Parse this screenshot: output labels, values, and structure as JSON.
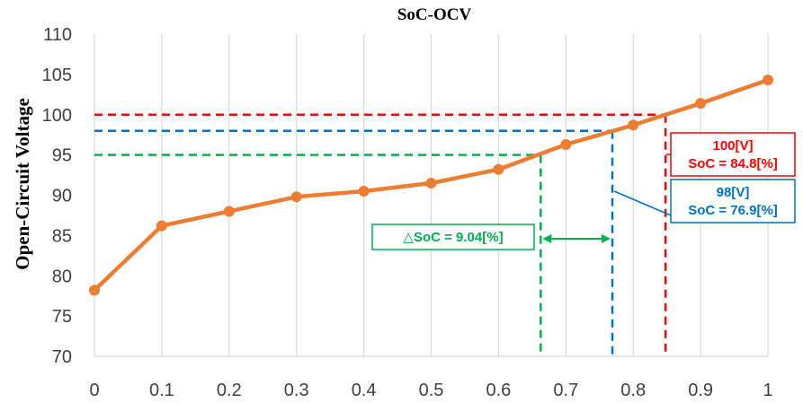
{
  "chart_data": {
    "type": "line",
    "title": "SoC-OCV",
    "xlabel": "",
    "ylabel": "Open-Circuit Voltage",
    "xlim": [
      0,
      1
    ],
    "ylim": [
      70,
      110
    ],
    "x_ticks": [
      "0",
      "0.1",
      "0.2",
      "0.3",
      "0.4",
      "0.5",
      "0.6",
      "0.7",
      "0.8",
      "0.9",
      "1"
    ],
    "y_ticks": [
      "70",
      "75",
      "80",
      "85",
      "90",
      "95",
      "100",
      "105",
      "110"
    ],
    "grid": "vertical",
    "series": [
      {
        "color": "#ed7d31",
        "x": [
          0,
          0.1,
          0.2,
          0.3,
          0.4,
          0.5,
          0.6,
          0.7,
          0.8,
          0.9,
          1.0
        ],
        "y": [
          78.2,
          86.2,
          88.0,
          89.8,
          90.5,
          91.5,
          93.2,
          96.3,
          98.7,
          101.4,
          104.3
        ]
      }
    ],
    "reference_lines": [
      {
        "voltage": 100,
        "soc": 0.848,
        "color": "#ff0000"
      },
      {
        "voltage": 98,
        "soc": 0.769,
        "color": "#0070c0"
      },
      {
        "voltage": 95,
        "soc": 0.6626,
        "color": "#00b050"
      }
    ],
    "annotations": [
      {
        "id": "red_box",
        "lines": [
          "100[V]",
          "SoC = 84.8[%]"
        ],
        "color": "#ff0000",
        "border": "#ff0000"
      },
      {
        "id": "blue_box",
        "lines": [
          "98[V]",
          "SoC = 76.9[%]"
        ],
        "color": "#0070c0",
        "border": "#0070c0"
      },
      {
        "id": "green_box",
        "lines": [
          "△SoC = 9.04[%]"
        ],
        "color": "#00b050",
        "border": "#00b050"
      }
    ]
  }
}
